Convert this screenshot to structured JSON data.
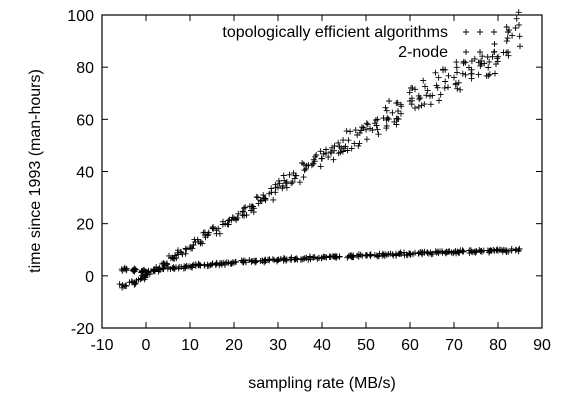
{
  "chart_data": {
    "type": "scatter",
    "xlabel": "sampling rate (MB/s)",
    "ylabel": "time since 1993 (man-hours)",
    "xlim": [
      -10,
      90
    ],
    "ylim": [
      -20,
      100
    ],
    "xticks": [
      -10,
      0,
      10,
      20,
      30,
      40,
      50,
      60,
      70,
      80,
      90
    ],
    "yticks": [
      -20,
      0,
      20,
      40,
      60,
      80,
      100
    ],
    "xtick_labels": [
      "-10",
      "0",
      "10",
      "20",
      "30",
      "40",
      "50",
      "60",
      "70",
      "80",
      "90"
    ],
    "ytick_labels": [
      "-20",
      "0",
      "20",
      "40",
      "60",
      "80",
      "100"
    ],
    "grid": false,
    "legend_position": "top-right",
    "series": [
      {
        "name": "topologically efficient algorithms",
        "marker": "+",
        "x": [
          -5,
          -3,
          -1,
          0,
          2,
          4,
          6,
          8,
          10,
          12,
          14,
          16,
          18,
          20,
          22,
          24,
          26,
          28,
          30,
          32,
          34,
          36,
          38,
          40,
          42,
          44,
          46,
          48,
          50,
          52,
          54,
          56,
          58,
          60,
          62,
          64,
          66,
          68,
          70,
          72,
          74,
          76,
          78,
          80,
          82,
          84
        ],
        "y": [
          -4,
          -2.5,
          -1,
          0.5,
          2.5,
          4.5,
          7,
          9,
          11,
          13,
          15.5,
          17.5,
          20,
          22,
          24.5,
          26.5,
          29,
          31.5,
          34,
          36,
          38.5,
          40.5,
          43,
          45,
          47.5,
          49.5,
          52,
          54,
          56,
          58.5,
          60.5,
          62.5,
          65,
          67,
          69,
          71,
          73,
          74.5,
          76,
          77.5,
          79,
          80.5,
          82,
          84,
          90,
          95
        ]
      },
      {
        "name": "2-node",
        "marker": "+",
        "x": [
          -5,
          -3,
          -1,
          0,
          2,
          4,
          6,
          8,
          10,
          12,
          14,
          16,
          18,
          20,
          22,
          24,
          26,
          28,
          30,
          32,
          34,
          36,
          38,
          40,
          42,
          44,
          46,
          48,
          50,
          52,
          54,
          56,
          58,
          60,
          62,
          64,
          66,
          68,
          70,
          72,
          74,
          76,
          78,
          80,
          82,
          84
        ],
        "y": [
          2.5,
          2.2,
          1.8,
          1.5,
          2.0,
          2.6,
          3.0,
          3.4,
          3.7,
          4.0,
          4.3,
          4.6,
          4.8,
          5.0,
          5.3,
          5.5,
          5.7,
          5.9,
          6.1,
          6.3,
          6.5,
          6.7,
          6.9,
          7.0,
          7.2,
          7.4,
          7.5,
          7.7,
          7.8,
          8.0,
          8.1,
          8.3,
          8.4,
          8.5,
          8.7,
          8.8,
          8.9,
          9.0,
          9.1,
          9.2,
          9.3,
          9.4,
          9.5,
          9.6,
          9.7,
          9.8
        ]
      }
    ]
  }
}
